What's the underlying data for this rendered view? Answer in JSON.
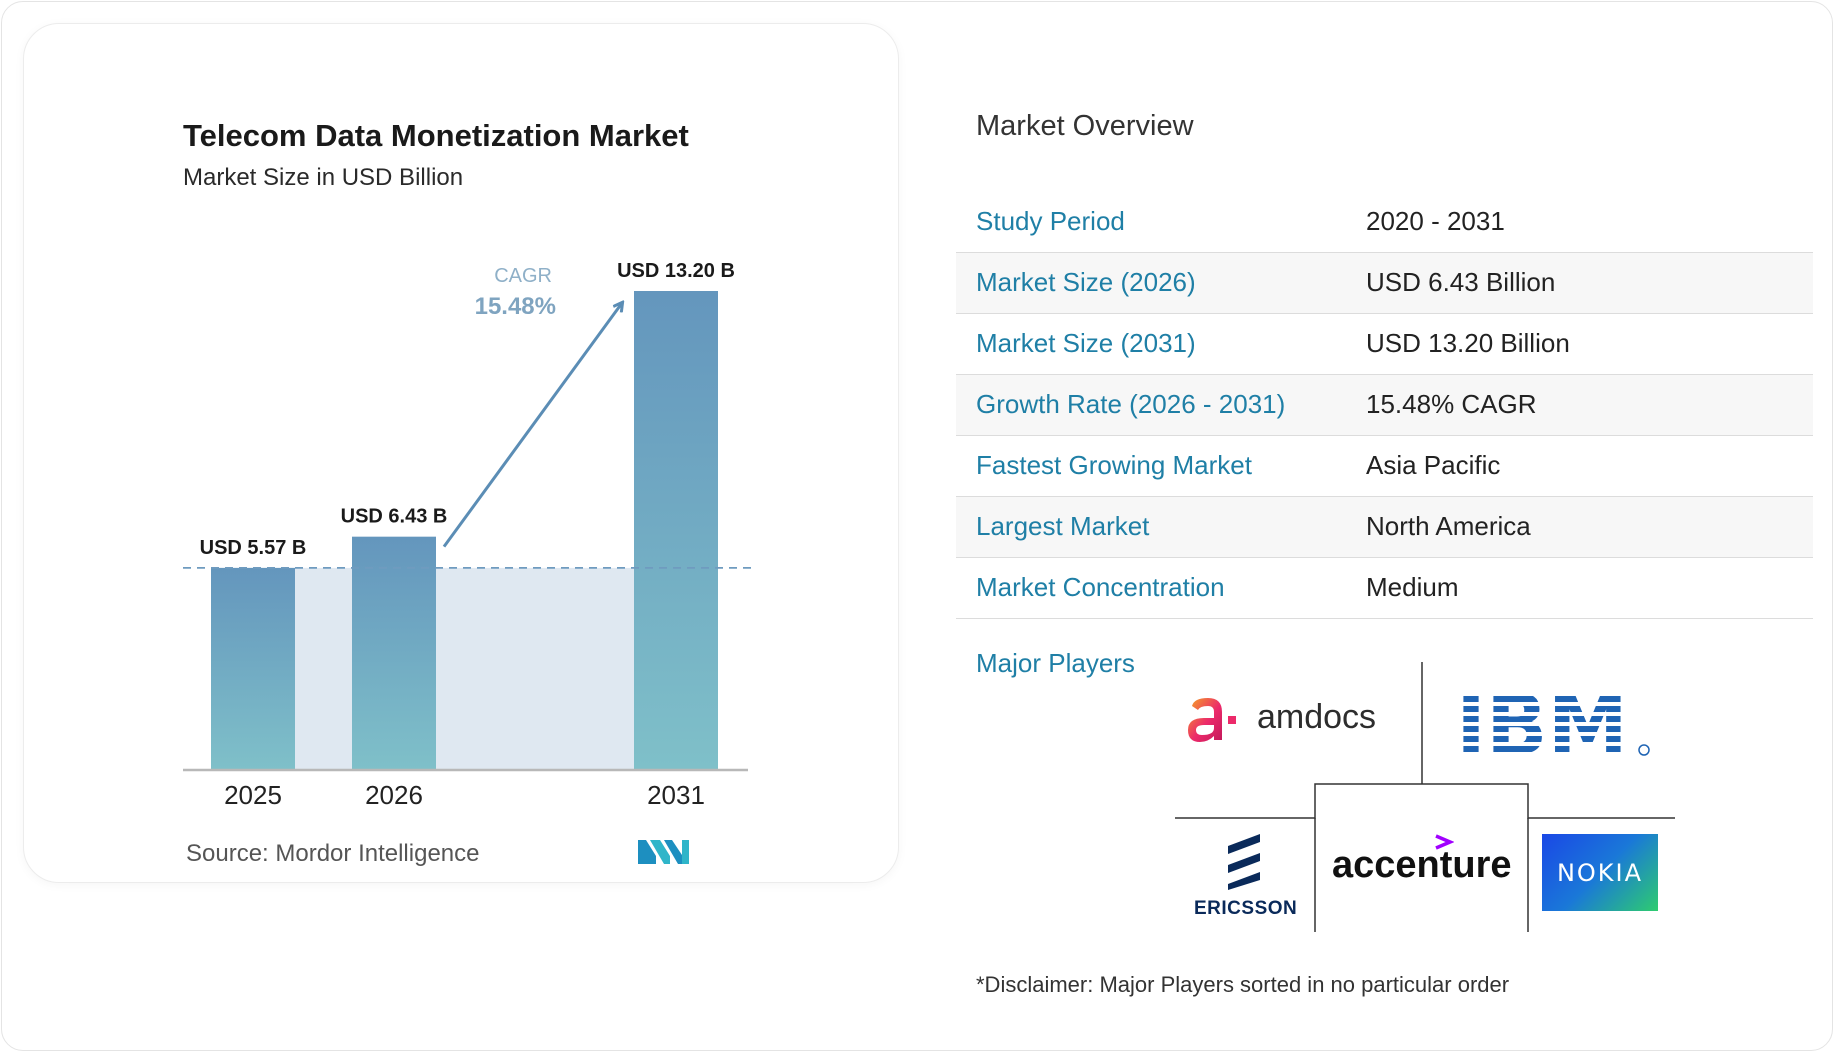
{
  "chart_data": {
    "type": "bar",
    "title": "Telecom Data Monetization Market",
    "subtitle": "Market Size in USD Billion",
    "categories": [
      "2025",
      "2026",
      "2031"
    ],
    "values": [
      5.57,
      6.43,
      13.2
    ],
    "value_labels": [
      "USD 5.57 B",
      "USD 6.43 B",
      "USD 13.20 B"
    ],
    "cagr_label": "CAGR",
    "cagr_value": "15.48%",
    "bar_color_top": "#6496bd",
    "bar_color_bottom": "#7fc0c9",
    "ylim": [
      0,
      13.2
    ],
    "source": "Source: Mordor Intelligence"
  },
  "overview": {
    "title": "Market Overview",
    "rows": [
      {
        "label": "Study Period",
        "value": "2020 - 2031"
      },
      {
        "label": "Market Size (2026)",
        "value": "USD 6.43 Billion"
      },
      {
        "label": "Market Size (2031)",
        "value": "USD 13.20 Billion"
      },
      {
        "label": "Growth Rate (2026 - 2031)",
        "value": "15.48% CAGR"
      },
      {
        "label": "Fastest Growing Market",
        "value": "Asia Pacific"
      },
      {
        "label": "Largest Market",
        "value": "North America"
      },
      {
        "label": "Market Concentration",
        "value": "Medium"
      }
    ],
    "major_players_label": "Major Players",
    "players": {
      "amdocs": "amdocs",
      "ibm": "IBM",
      "ericsson": "ERICSSON",
      "accenture": "accenture",
      "nokia": "NOKIA"
    },
    "disclaimer": "*Disclaimer: Major Players sorted in no particular order"
  },
  "colors": {
    "label_blue": "#1f7fa6",
    "arrow": "#5b8db5",
    "shade": "#dfe8f1"
  }
}
